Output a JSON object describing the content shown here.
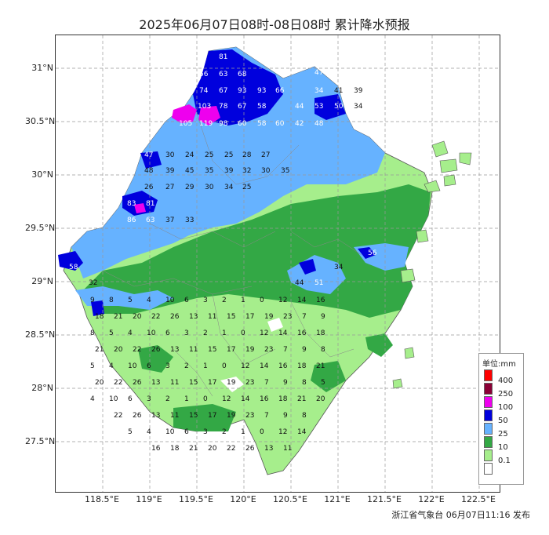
{
  "title": "2025年06月07日08时-08日08时 累计降水预报",
  "footer": "浙江省气象台 06月07日11:16 发布",
  "axes": {
    "lat_labels": [
      "31°N",
      "30.5°N",
      "30°N",
      "29.5°N",
      "29°N",
      "28.5°N",
      "28°N",
      "27.5°N"
    ],
    "lon_labels": [
      "118.5°E",
      "119°E",
      "119.5°E",
      "120°E",
      "120.5°E",
      "121°E",
      "121.5°E",
      "122°E",
      "122.5°E"
    ]
  },
  "legend": {
    "title": "单位:mm",
    "items": [
      {
        "label": "400",
        "color": "#ff0000"
      },
      {
        "label": "250",
        "color": "#8b0036"
      },
      {
        "label": "100",
        "color": "#ee00ee"
      },
      {
        "label": "50",
        "color": "#0000dd"
      },
      {
        "label": "25",
        "color": "#66b2ff"
      },
      {
        "label": "10",
        "color": "#33a845"
      },
      {
        "label": "0.1",
        "color": "#a6ee8c"
      },
      {
        "label": "",
        "color": "#ffffff"
      }
    ]
  },
  "rain_values": [
    {
      "id": "v1",
      "text": "81"
    },
    {
      "id": "v2",
      "text": "56"
    },
    {
      "id": "v3",
      "text": "63"
    },
    {
      "id": "v4",
      "text": "68"
    },
    {
      "id": "v5",
      "text": "74"
    },
    {
      "id": "v6",
      "text": "67"
    },
    {
      "id": "v7",
      "text": "93"
    },
    {
      "id": "v8",
      "text": "93"
    },
    {
      "id": "v9",
      "text": "66"
    },
    {
      "id": "v10",
      "text": "103"
    },
    {
      "id": "v11",
      "text": "78"
    },
    {
      "id": "v12",
      "text": "67"
    },
    {
      "id": "v13",
      "text": "58"
    },
    {
      "id": "v14",
      "text": "105"
    },
    {
      "id": "v15",
      "text": "119"
    },
    {
      "id": "v16",
      "text": "98"
    },
    {
      "id": "v17",
      "text": "60"
    },
    {
      "id": "v18",
      "text": "58"
    },
    {
      "id": "v19",
      "text": "60"
    },
    {
      "id": "v20",
      "text": "34"
    },
    {
      "id": "v21",
      "text": "41"
    },
    {
      "id": "v22",
      "text": "39"
    },
    {
      "id": "v23",
      "text": "44"
    },
    {
      "id": "v24",
      "text": "53"
    },
    {
      "id": "v25",
      "text": "50"
    },
    {
      "id": "v26",
      "text": "34"
    },
    {
      "id": "v27",
      "text": "42"
    },
    {
      "id": "v28",
      "text": "48"
    },
    {
      "id": "v29",
      "text": "47"
    },
    {
      "id": "v30",
      "text": "47"
    },
    {
      "id": "v31",
      "text": "30"
    },
    {
      "id": "v32",
      "text": "24"
    },
    {
      "id": "v33",
      "text": "25"
    },
    {
      "id": "v34",
      "text": "25"
    },
    {
      "id": "v35",
      "text": "28"
    },
    {
      "id": "v36",
      "text": "27"
    },
    {
      "id": "v37",
      "text": "48"
    },
    {
      "id": "v38",
      "text": "39"
    },
    {
      "id": "v39",
      "text": "45"
    },
    {
      "id": "v40",
      "text": "35"
    },
    {
      "id": "v41",
      "text": "39"
    },
    {
      "id": "v42",
      "text": "32"
    },
    {
      "id": "v43",
      "text": "30"
    },
    {
      "id": "v44",
      "text": "35"
    },
    {
      "id": "v45",
      "text": "26"
    },
    {
      "id": "v46",
      "text": "27"
    },
    {
      "id": "v47",
      "text": "29"
    },
    {
      "id": "v48",
      "text": "30"
    },
    {
      "id": "v49",
      "text": "34"
    },
    {
      "id": "v50",
      "text": "25"
    },
    {
      "id": "v51",
      "text": "83"
    },
    {
      "id": "v52",
      "text": "81"
    },
    {
      "id": "v53",
      "text": "86"
    },
    {
      "id": "v54",
      "text": "63"
    },
    {
      "id": "v55",
      "text": "37"
    },
    {
      "id": "v56",
      "text": "33"
    },
    {
      "id": "v57",
      "text": "58"
    },
    {
      "id": "v58",
      "text": "32"
    },
    {
      "id": "v59",
      "text": "56"
    },
    {
      "id": "v60",
      "text": "51"
    },
    {
      "id": "v61",
      "text": "44"
    },
    {
      "id": "v62",
      "text": "34"
    }
  ],
  "minor_values": [
    "9",
    "8",
    "5",
    "4",
    "10",
    "6",
    "3",
    "2",
    "1",
    "0",
    "12",
    "14",
    "16",
    "18",
    "21",
    "20",
    "22",
    "26",
    "13",
    "11",
    "15",
    "17",
    "19",
    "23",
    "7"
  ]
}
